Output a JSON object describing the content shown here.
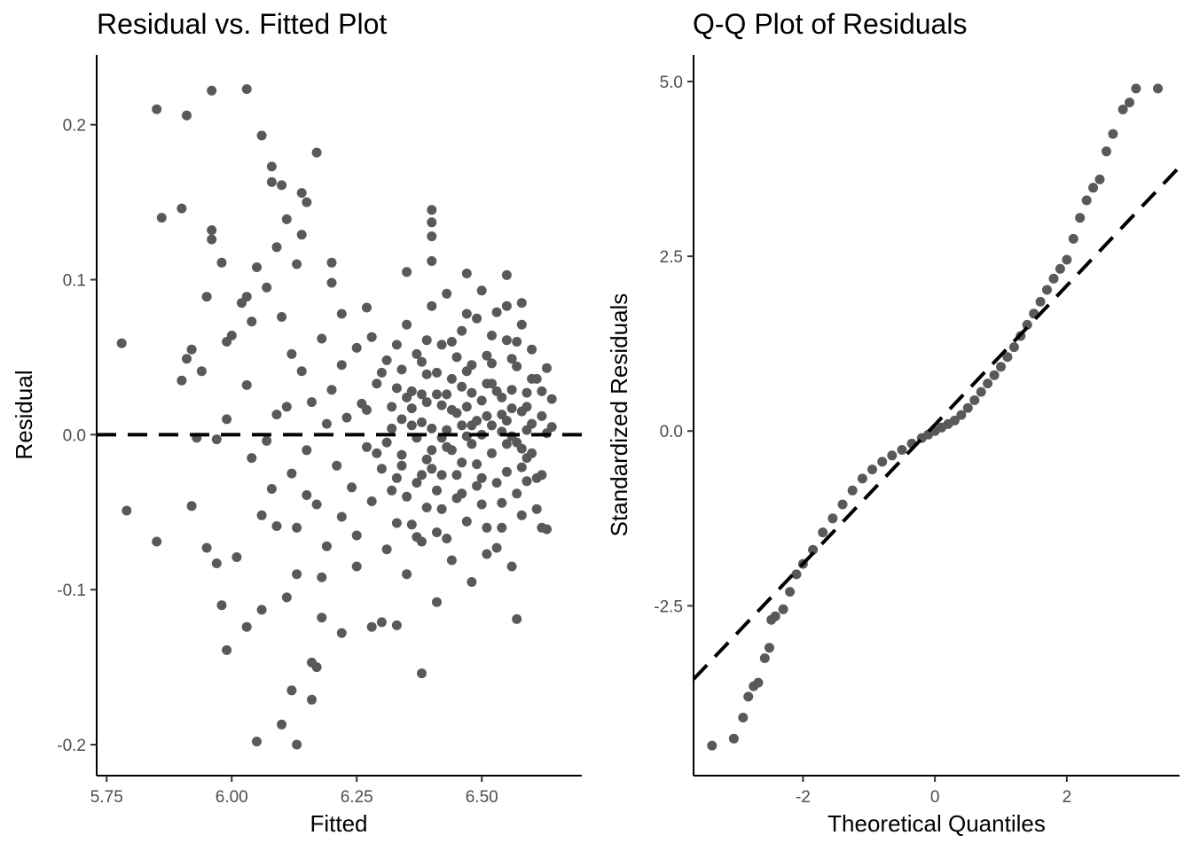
{
  "chart_data": [
    {
      "type": "scatter",
      "title": "Residual vs. Fitted Plot",
      "xlabel": "Fitted",
      "ylabel": "Residual",
      "xlim": [
        5.73,
        6.7
      ],
      "ylim": [
        -0.22,
        0.245
      ],
      "xticks": [
        5.75,
        6.0,
        6.25,
        6.5
      ],
      "xtick_labels": [
        "5.75",
        "6.00",
        "6.25",
        "6.50"
      ],
      "yticks": [
        -0.2,
        -0.1,
        0.0,
        0.1,
        0.2
      ],
      "ytick_labels": [
        "-0.2",
        "-0.1",
        "0.0",
        "0.1",
        "0.2"
      ],
      "reference_line": {
        "type": "horizontal",
        "y": 0,
        "style": "dashed"
      },
      "grid": false,
      "point_color": "#595959",
      "points": [
        [
          5.78,
          0.059
        ],
        [
          5.79,
          -0.049
        ],
        [
          5.85,
          0.21
        ],
        [
          5.85,
          -0.069
        ],
        [
          5.86,
          0.14
        ],
        [
          5.9,
          0.146
        ],
        [
          5.9,
          0.035
        ],
        [
          5.91,
          0.206
        ],
        [
          5.91,
          0.049
        ],
        [
          5.92,
          0.055
        ],
        [
          5.92,
          -0.046
        ],
        [
          5.93,
          -0.002
        ],
        [
          5.94,
          0.041
        ],
        [
          5.95,
          -0.073
        ],
        [
          5.95,
          0.089
        ],
        [
          5.96,
          0.222
        ],
        [
          5.96,
          0.126
        ],
        [
          5.96,
          0.132
        ],
        [
          5.97,
          -0.003
        ],
        [
          5.97,
          -0.083
        ],
        [
          5.98,
          0.111
        ],
        [
          5.99,
          0.06
        ],
        [
          5.99,
          0.01
        ],
        [
          5.99,
          -0.139
        ],
        [
          6.0,
          0.064
        ],
        [
          6.02,
          0.085
        ],
        [
          6.03,
          0.223
        ],
        [
          6.03,
          0.089
        ],
        [
          6.04,
          0.073
        ],
        [
          6.05,
          0.108
        ],
        [
          6.06,
          0.193
        ],
        [
          6.06,
          -0.113
        ],
        [
          6.07,
          0.095
        ],
        [
          6.08,
          0.173
        ],
        [
          6.08,
          0.163
        ],
        [
          6.09,
          0.121
        ],
        [
          6.1,
          0.161
        ],
        [
          6.1,
          0.076
        ],
        [
          6.11,
          0.139
        ],
        [
          6.12,
          -0.165
        ],
        [
          6.13,
          0.11
        ],
        [
          6.14,
          0.156
        ],
        [
          6.14,
          0.129
        ],
        [
          6.15,
          0.15
        ],
        [
          6.16,
          -0.147
        ],
        [
          6.16,
          -0.171
        ],
        [
          6.17,
          0.182
        ],
        [
          6.17,
          -0.15
        ],
        [
          6.2,
          0.111
        ],
        [
          6.2,
          0.098
        ],
        [
          6.1,
          -0.187
        ],
        [
          6.11,
          -0.105
        ],
        [
          6.13,
          -0.2
        ],
        [
          6.05,
          -0.198
        ],
        [
          6.03,
          -0.124
        ],
        [
          6.01,
          -0.079
        ],
        [
          5.98,
          -0.11
        ],
        [
          6.18,
          -0.118
        ],
        [
          6.38,
          -0.154
        ],
        [
          6.3,
          -0.121
        ],
        [
          6.33,
          -0.123
        ],
        [
          6.57,
          -0.119
        ],
        [
          6.35,
          0.105
        ],
        [
          6.4,
          0.145
        ],
        [
          6.4,
          0.137
        ],
        [
          6.4,
          0.128
        ],
        [
          6.4,
          0.112
        ],
        [
          6.47,
          0.104
        ],
        [
          6.55,
          0.103
        ],
        [
          6.64,
          0.023
        ],
        [
          6.63,
          -0.061
        ],
        [
          6.58,
          0.085
        ],
        [
          6.22,
          0.078
        ],
        [
          6.27,
          0.082
        ],
        [
          6.28,
          -0.124
        ],
        [
          6.41,
          -0.108
        ],
        [
          6.22,
          -0.128
        ],
        [
          6.25,
          -0.085
        ],
        [
          6.18,
          -0.092
        ],
        [
          6.13,
          -0.09
        ],
        [
          6.03,
          0.032
        ],
        [
          6.04,
          -0.015
        ],
        [
          6.06,
          -0.052
        ],
        [
          6.07,
          -0.004
        ],
        [
          6.08,
          -0.035
        ],
        [
          6.09,
          0.013
        ],
        [
          6.09,
          -0.059
        ],
        [
          6.11,
          0.018
        ],
        [
          6.12,
          0.052
        ],
        [
          6.12,
          -0.025
        ],
        [
          6.13,
          -0.06
        ],
        [
          6.14,
          0.041
        ],
        [
          6.15,
          -0.01
        ],
        [
          6.15,
          -0.039
        ],
        [
          6.16,
          0.021
        ],
        [
          6.17,
          -0.045
        ],
        [
          6.18,
          0.062
        ],
        [
          6.19,
          0.007
        ],
        [
          6.19,
          -0.072
        ],
        [
          6.2,
          0.029
        ],
        [
          6.21,
          -0.02
        ],
        [
          6.22,
          0.045
        ],
        [
          6.22,
          -0.053
        ],
        [
          6.23,
          0.011
        ],
        [
          6.24,
          -0.034
        ],
        [
          6.25,
          0.056
        ],
        [
          6.25,
          -0.065
        ],
        [
          6.26,
          0.02
        ],
        [
          6.27,
          -0.008
        ],
        [
          6.28,
          0.063
        ],
        [
          6.28,
          -0.043
        ],
        [
          6.29,
          0.033
        ],
        [
          6.3,
          -0.022
        ],
        [
          6.31,
          0.048
        ],
        [
          6.31,
          -0.074
        ],
        [
          6.32,
          0.004
        ],
        [
          6.33,
          -0.057
        ],
        [
          6.33,
          0.03
        ],
        [
          6.34,
          -0.013
        ],
        [
          6.35,
          0.071
        ],
        [
          6.35,
          -0.09
        ],
        [
          6.36,
          0.017
        ],
        [
          6.37,
          -0.031
        ],
        [
          6.37,
          0.052
        ],
        [
          6.38,
          -0.069
        ],
        [
          6.38,
          0.008
        ],
        [
          6.39,
          0.039
        ],
        [
          6.39,
          -0.047
        ],
        [
          6.4,
          0.083
        ],
        [
          6.4,
          -0.01
        ],
        [
          6.41,
          0.026
        ],
        [
          6.41,
          -0.063
        ],
        [
          6.42,
          0.058
        ],
        [
          6.42,
          -0.026
        ],
        [
          6.43,
          0.003
        ],
        [
          6.43,
          0.091
        ],
        [
          6.44,
          -0.081
        ],
        [
          6.44,
          0.036
        ],
        [
          6.45,
          -0.041
        ],
        [
          6.45,
          0.014
        ],
        [
          6.46,
          0.067
        ],
        [
          6.46,
          -0.018
        ],
        [
          6.47,
          -0.056
        ],
        [
          6.47,
          0.041
        ],
        [
          6.48,
          0.006
        ],
        [
          6.48,
          -0.095
        ],
        [
          6.49,
          0.075
        ],
        [
          6.49,
          -0.033
        ],
        [
          6.5,
          0.022
        ],
        [
          6.5,
          0.093
        ],
        [
          6.51,
          -0.06
        ],
        [
          6.51,
          0.051
        ],
        [
          6.52,
          -0.012
        ],
        [
          6.52,
          0.033
        ],
        [
          6.53,
          -0.073
        ],
        [
          6.53,
          0.079
        ],
        [
          6.54,
          0.002
        ],
        [
          6.54,
          -0.044
        ],
        [
          6.55,
          0.061
        ],
        [
          6.55,
          -0.024
        ],
        [
          6.56,
          0.017
        ],
        [
          6.56,
          -0.085
        ],
        [
          6.57,
          0.044
        ],
        [
          6.57,
          -0.005
        ],
        [
          6.58,
          0.071
        ],
        [
          6.58,
          -0.052
        ],
        [
          6.59,
          0.027
        ],
        [
          6.59,
          -0.03
        ],
        [
          6.6,
          0.055
        ],
        [
          6.6,
          -0.012
        ],
        [
          6.61,
          0.036
        ],
        [
          6.61,
          -0.048
        ],
        [
          6.62,
          0.012
        ],
        [
          6.62,
          -0.06
        ],
        [
          6.63,
          0.043
        ],
        [
          6.31,
          -0.005
        ],
        [
          6.32,
          0.018
        ],
        [
          6.33,
          -0.028
        ],
        [
          6.34,
          0.01
        ],
        [
          6.35,
          -0.04
        ],
        [
          6.36,
          0.028
        ],
        [
          6.37,
          -0.002
        ],
        [
          6.38,
          0.047
        ],
        [
          6.39,
          -0.016
        ],
        [
          6.4,
          0.004
        ],
        [
          6.41,
          -0.036
        ],
        [
          6.42,
          0.019
        ],
        [
          6.43,
          -0.008
        ],
        [
          6.44,
          0.06
        ],
        [
          6.45,
          -0.026
        ],
        [
          6.46,
          0.031
        ],
        [
          6.47,
          -0.001
        ],
        [
          6.48,
          0.045
        ],
        [
          6.49,
          -0.019
        ],
        [
          6.5,
          -0.045
        ],
        [
          6.51,
          0.012
        ],
        [
          6.52,
          0.064
        ],
        [
          6.53,
          -0.031
        ],
        [
          6.54,
          0.024
        ],
        [
          6.55,
          -0.006
        ],
        [
          6.56,
          0.049
        ],
        [
          6.57,
          -0.038
        ],
        [
          6.58,
          0.015
        ],
        [
          6.59,
          -0.015
        ],
        [
          6.6,
          0.007
        ],
        [
          6.34,
          0.042
        ],
        [
          6.36,
          -0.058
        ],
        [
          6.38,
          0.026
        ],
        [
          6.42,
          -0.048
        ],
        [
          6.44,
          0.016
        ],
        [
          6.46,
          -0.038
        ],
        [
          6.48,
          0.027
        ],
        [
          6.5,
          -0.028
        ],
        [
          6.52,
          0.046
        ],
        [
          6.54,
          -0.06
        ],
        [
          6.56,
          0.029
        ],
        [
          6.58,
          -0.021
        ],
        [
          6.6,
          0.036
        ],
        [
          6.62,
          -0.026
        ],
        [
          6.64,
          0.005
        ],
        [
          6.27,
          0.016
        ],
        [
          6.29,
          -0.012
        ],
        [
          6.3,
          0.04
        ],
        [
          6.32,
          -0.036
        ],
        [
          6.33,
          0.058
        ],
        [
          6.35,
          0.024
        ],
        [
          6.37,
          -0.066
        ],
        [
          6.39,
          0.061
        ],
        [
          6.41,
          0.04
        ],
        [
          6.43,
          -0.067
        ],
        [
          6.45,
          0.05
        ],
        [
          6.47,
          0.078
        ],
        [
          6.49,
          0.009
        ],
        [
          6.51,
          -0.077
        ],
        [
          6.53,
          0.028
        ],
        [
          6.55,
          0.083
        ],
        [
          6.57,
          0.06
        ],
        [
          6.59,
          0.003
        ],
        [
          6.61,
          -0.028
        ],
        [
          6.63,
          0.001
        ],
        [
          6.36,
          0.006
        ],
        [
          6.4,
          -0.022
        ],
        [
          6.44,
          -0.01
        ],
        [
          6.48,
          -0.006
        ],
        [
          6.52,
          0.006
        ],
        [
          6.56,
          -0.001
        ],
        [
          6.39,
          0.021
        ],
        [
          6.43,
          0.026
        ],
        [
          6.47,
          0.018
        ],
        [
          6.51,
          0.033
        ],
        [
          6.55,
          0.009
        ],
        [
          6.59,
          0.018
        ],
        [
          6.42,
          -0.002
        ],
        [
          6.46,
          0.006
        ],
        [
          6.5,
          0.0
        ],
        [
          6.54,
          0.013
        ],
        [
          6.58,
          -0.009
        ],
        [
          6.34,
          -0.02
        ],
        [
          6.38,
          -0.026
        ],
        [
          6.62,
          0.028
        ]
      ]
    },
    {
      "type": "scatter",
      "title": "Q-Q Plot of Residuals",
      "xlabel": "Theoretical Quantiles",
      "ylabel": "Standardized Residuals",
      "xlim": [
        -3.66,
        3.71
      ],
      "ylim": [
        -4.93,
        5.38
      ],
      "xticks": [
        -2,
        0,
        2
      ],
      "xtick_labels": [
        "-2",
        "0",
        "2"
      ],
      "yticks": [
        -2.5,
        0.0,
        2.5,
        5.0
      ],
      "ytick_labels": [
        "-2.5",
        "0.0",
        "2.5",
        "5.0"
      ],
      "reference_line": {
        "type": "diagonal",
        "points": [
          [
            -3.66,
            -3.55
          ],
          [
            3.71,
            3.78
          ]
        ],
        "style": "dashed"
      },
      "grid": false,
      "point_color": "#595959",
      "points": [
        [
          -3.38,
          -4.5
        ],
        [
          -3.05,
          -4.4
        ],
        [
          -2.91,
          -4.1
        ],
        [
          -2.83,
          -3.8
        ],
        [
          -2.75,
          -3.65
        ],
        [
          -2.68,
          -3.6
        ],
        [
          -2.58,
          -3.25
        ],
        [
          -2.51,
          -3.1
        ],
        [
          -2.48,
          -2.7
        ],
        [
          -2.42,
          -2.65
        ],
        [
          -2.3,
          -2.55
        ],
        [
          -2.2,
          -2.3
        ],
        [
          -2.1,
          -2.05
        ],
        [
          -2.0,
          -1.9
        ],
        [
          -1.85,
          -1.7
        ],
        [
          -1.7,
          -1.45
        ],
        [
          -1.55,
          -1.25
        ],
        [
          -1.4,
          -1.05
        ],
        [
          -1.25,
          -0.85
        ],
        [
          -1.1,
          -0.68
        ],
        [
          -0.95,
          -0.55
        ],
        [
          -0.8,
          -0.44
        ],
        [
          -0.65,
          -0.35
        ],
        [
          -0.5,
          -0.27
        ],
        [
          -0.35,
          -0.18
        ],
        [
          -0.2,
          -0.1
        ],
        [
          -0.1,
          -0.05
        ],
        [
          0.0,
          0.0
        ],
        [
          0.1,
          0.05
        ],
        [
          0.2,
          0.1
        ],
        [
          0.3,
          0.15
        ],
        [
          0.4,
          0.23
        ],
        [
          0.5,
          0.33
        ],
        [
          0.6,
          0.44
        ],
        [
          0.7,
          0.56
        ],
        [
          0.8,
          0.68
        ],
        [
          0.9,
          0.8
        ],
        [
          1.0,
          0.92
        ],
        [
          1.1,
          1.06
        ],
        [
          1.2,
          1.2
        ],
        [
          1.3,
          1.36
        ],
        [
          1.4,
          1.52
        ],
        [
          1.5,
          1.68
        ],
        [
          1.6,
          1.85
        ],
        [
          1.7,
          2.02
        ],
        [
          1.8,
          2.18
        ],
        [
          1.9,
          2.32
        ],
        [
          2.0,
          2.45
        ],
        [
          2.1,
          2.75
        ],
        [
          2.2,
          3.05
        ],
        [
          2.3,
          3.3
        ],
        [
          2.4,
          3.48
        ],
        [
          2.5,
          3.6
        ],
        [
          2.6,
          4.0
        ],
        [
          2.7,
          4.25
        ],
        [
          2.85,
          4.6
        ],
        [
          2.95,
          4.7
        ],
        [
          3.05,
          4.9
        ],
        [
          3.38,
          4.9
        ]
      ]
    }
  ]
}
